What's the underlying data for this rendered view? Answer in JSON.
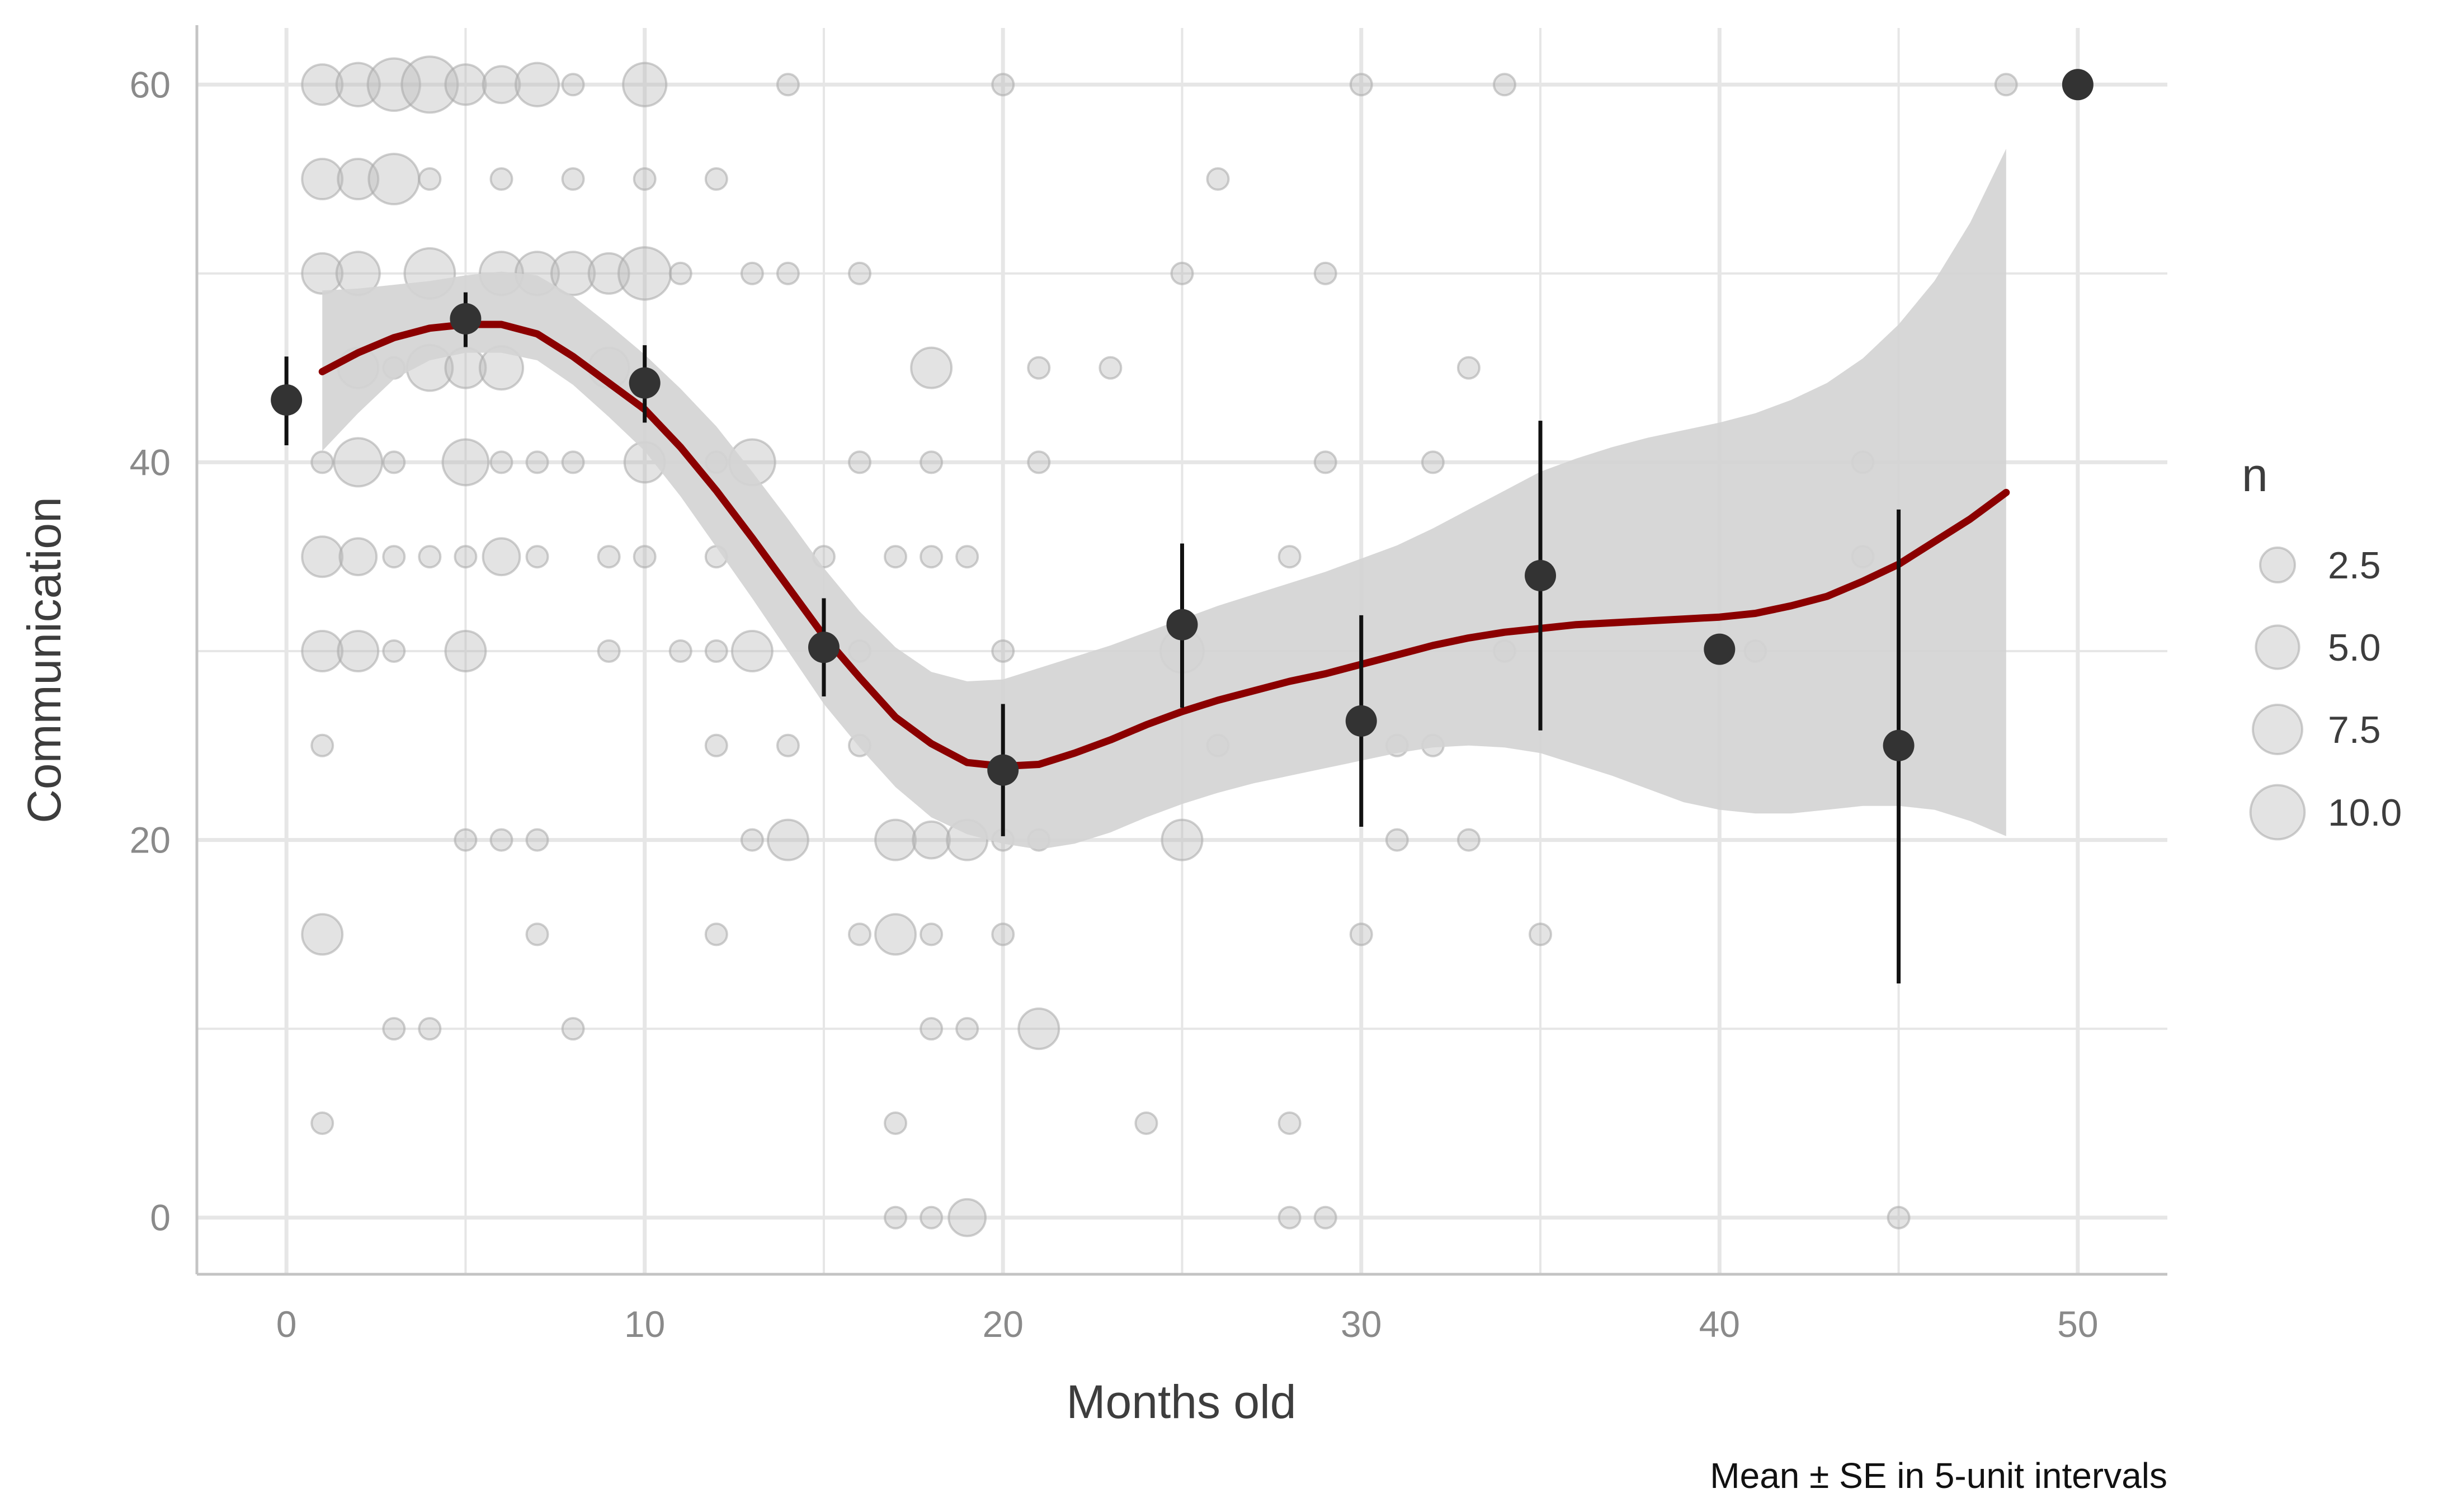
{
  "chart_data": {
    "type": "scatter",
    "title": "",
    "xlabel": "Months old",
    "ylabel": "Communication",
    "caption": "Mean ± SE in 5-unit intervals",
    "xlim": [
      -2.5,
      52.5
    ],
    "ylim": [
      -3,
      63
    ],
    "x_ticks": [
      0,
      10,
      20,
      30,
      40,
      50
    ],
    "y_ticks": [
      0,
      20,
      40,
      60
    ],
    "x_tick_labels": [
      "0",
      "10",
      "20",
      "30",
      "40",
      "50"
    ],
    "y_tick_labels": [
      "0",
      "20",
      "40",
      "60"
    ],
    "grid": true,
    "legend": {
      "title": "n",
      "position": "right",
      "entries": [
        {
          "label": "2.5",
          "n": 2.5
        },
        {
          "label": "5.0",
          "n": 5.0
        },
        {
          "label": "7.5",
          "n": 7.5
        },
        {
          "label": "10.0",
          "n": 10.0
        }
      ]
    },
    "colors": {
      "points": "#bdbdbd",
      "means": "#333333",
      "smooth": "#8b0000",
      "ribbon": "#d4d4d4",
      "grid": "#e6e6e6",
      "axis": "#c4c4c4"
    },
    "counts": [
      {
        "x": 1,
        "y": 60,
        "n": 4
      },
      {
        "x": 2,
        "y": 60,
        "n": 5
      },
      {
        "x": 3,
        "y": 60,
        "n": 9
      },
      {
        "x": 4,
        "y": 60,
        "n": 11
      },
      {
        "x": 5,
        "y": 60,
        "n": 4
      },
      {
        "x": 6,
        "y": 60,
        "n": 3
      },
      {
        "x": 7,
        "y": 60,
        "n": 5
      },
      {
        "x": 8,
        "y": 60,
        "n": 1
      },
      {
        "x": 10,
        "y": 60,
        "n": 5
      },
      {
        "x": 14,
        "y": 60,
        "n": 1
      },
      {
        "x": 20,
        "y": 60,
        "n": 1
      },
      {
        "x": 30,
        "y": 60,
        "n": 1
      },
      {
        "x": 34,
        "y": 60,
        "n": 1
      },
      {
        "x": 48,
        "y": 60,
        "n": 1
      },
      {
        "x": 1,
        "y": 55,
        "n": 4
      },
      {
        "x": 2,
        "y": 55,
        "n": 4
      },
      {
        "x": 3,
        "y": 55,
        "n": 8
      },
      {
        "x": 4,
        "y": 55,
        "n": 1
      },
      {
        "x": 6,
        "y": 55,
        "n": 1
      },
      {
        "x": 8,
        "y": 55,
        "n": 1
      },
      {
        "x": 10,
        "y": 55,
        "n": 1
      },
      {
        "x": 12,
        "y": 55,
        "n": 1
      },
      {
        "x": 26,
        "y": 55,
        "n": 1
      },
      {
        "x": 1,
        "y": 50,
        "n": 4
      },
      {
        "x": 2,
        "y": 50,
        "n": 5
      },
      {
        "x": 4,
        "y": 50,
        "n": 8
      },
      {
        "x": 6,
        "y": 50,
        "n": 5
      },
      {
        "x": 7,
        "y": 50,
        "n": 5
      },
      {
        "x": 8,
        "y": 50,
        "n": 5
      },
      {
        "x": 9,
        "y": 50,
        "n": 4
      },
      {
        "x": 10,
        "y": 50,
        "n": 9
      },
      {
        "x": 11,
        "y": 50,
        "n": 1
      },
      {
        "x": 13,
        "y": 50,
        "n": 1
      },
      {
        "x": 14,
        "y": 50,
        "n": 1
      },
      {
        "x": 16,
        "y": 50,
        "n": 1
      },
      {
        "x": 25,
        "y": 50,
        "n": 1
      },
      {
        "x": 29,
        "y": 50,
        "n": 1
      },
      {
        "x": 2,
        "y": 45,
        "n": 4
      },
      {
        "x": 3,
        "y": 45,
        "n": 1
      },
      {
        "x": 4,
        "y": 45,
        "n": 6
      },
      {
        "x": 5,
        "y": 45,
        "n": 4
      },
      {
        "x": 6,
        "y": 45,
        "n": 5
      },
      {
        "x": 9,
        "y": 45,
        "n": 4
      },
      {
        "x": 18,
        "y": 45,
        "n": 4
      },
      {
        "x": 21,
        "y": 45,
        "n": 1
      },
      {
        "x": 23,
        "y": 45,
        "n": 1
      },
      {
        "x": 33,
        "y": 45,
        "n": 1
      },
      {
        "x": 1,
        "y": 40,
        "n": 1
      },
      {
        "x": 2,
        "y": 40,
        "n": 7
      },
      {
        "x": 3,
        "y": 40,
        "n": 1
      },
      {
        "x": 5,
        "y": 40,
        "n": 6
      },
      {
        "x": 6,
        "y": 40,
        "n": 1
      },
      {
        "x": 7,
        "y": 40,
        "n": 1
      },
      {
        "x": 8,
        "y": 40,
        "n": 1
      },
      {
        "x": 10,
        "y": 40,
        "n": 4
      },
      {
        "x": 12,
        "y": 40,
        "n": 1
      },
      {
        "x": 13,
        "y": 40,
        "n": 6
      },
      {
        "x": 16,
        "y": 40,
        "n": 1
      },
      {
        "x": 18,
        "y": 40,
        "n": 1
      },
      {
        "x": 21,
        "y": 40,
        "n": 1
      },
      {
        "x": 29,
        "y": 40,
        "n": 1
      },
      {
        "x": 32,
        "y": 40,
        "n": 1
      },
      {
        "x": 44,
        "y": 40,
        "n": 1
      },
      {
        "x": 1,
        "y": 35,
        "n": 4
      },
      {
        "x": 2,
        "y": 35,
        "n": 3
      },
      {
        "x": 3,
        "y": 35,
        "n": 1
      },
      {
        "x": 4,
        "y": 35,
        "n": 1
      },
      {
        "x": 5,
        "y": 35,
        "n": 1
      },
      {
        "x": 6,
        "y": 35,
        "n": 3
      },
      {
        "x": 7,
        "y": 35,
        "n": 1
      },
      {
        "x": 9,
        "y": 35,
        "n": 1
      },
      {
        "x": 10,
        "y": 35,
        "n": 1
      },
      {
        "x": 12,
        "y": 35,
        "n": 1
      },
      {
        "x": 15,
        "y": 35,
        "n": 1
      },
      {
        "x": 17,
        "y": 35,
        "n": 1
      },
      {
        "x": 18,
        "y": 35,
        "n": 1
      },
      {
        "x": 19,
        "y": 35,
        "n": 1
      },
      {
        "x": 28,
        "y": 35,
        "n": 1
      },
      {
        "x": 44,
        "y": 35,
        "n": 1
      },
      {
        "x": 1,
        "y": 30,
        "n": 4
      },
      {
        "x": 2,
        "y": 30,
        "n": 4
      },
      {
        "x": 3,
        "y": 30,
        "n": 1
      },
      {
        "x": 5,
        "y": 30,
        "n": 4
      },
      {
        "x": 9,
        "y": 30,
        "n": 1
      },
      {
        "x": 11,
        "y": 30,
        "n": 1
      },
      {
        "x": 12,
        "y": 30,
        "n": 1
      },
      {
        "x": 13,
        "y": 30,
        "n": 4
      },
      {
        "x": 15,
        "y": 30,
        "n": 1
      },
      {
        "x": 16,
        "y": 30,
        "n": 1
      },
      {
        "x": 20,
        "y": 30,
        "n": 1
      },
      {
        "x": 25,
        "y": 30,
        "n": 5
      },
      {
        "x": 34,
        "y": 30,
        "n": 1
      },
      {
        "x": 41,
        "y": 30,
        "n": 1
      },
      {
        "x": 1,
        "y": 25,
        "n": 1
      },
      {
        "x": 12,
        "y": 25,
        "n": 1
      },
      {
        "x": 14,
        "y": 25,
        "n": 1
      },
      {
        "x": 16,
        "y": 25,
        "n": 1
      },
      {
        "x": 26,
        "y": 25,
        "n": 1
      },
      {
        "x": 31,
        "y": 25,
        "n": 1
      },
      {
        "x": 32,
        "y": 25,
        "n": 1
      },
      {
        "x": 5,
        "y": 20,
        "n": 1
      },
      {
        "x": 6,
        "y": 20,
        "n": 1
      },
      {
        "x": 7,
        "y": 20,
        "n": 1
      },
      {
        "x": 13,
        "y": 20,
        "n": 1
      },
      {
        "x": 14,
        "y": 20,
        "n": 4
      },
      {
        "x": 17,
        "y": 20,
        "n": 4
      },
      {
        "x": 18,
        "y": 20,
        "n": 3
      },
      {
        "x": 19,
        "y": 20,
        "n": 4
      },
      {
        "x": 20,
        "y": 20,
        "n": 1
      },
      {
        "x": 21,
        "y": 20,
        "n": 1
      },
      {
        "x": 25,
        "y": 20,
        "n": 4
      },
      {
        "x": 31,
        "y": 20,
        "n": 1
      },
      {
        "x": 33,
        "y": 20,
        "n": 1
      },
      {
        "x": 1,
        "y": 15,
        "n": 4
      },
      {
        "x": 7,
        "y": 15,
        "n": 1
      },
      {
        "x": 12,
        "y": 15,
        "n": 1
      },
      {
        "x": 16,
        "y": 15,
        "n": 1
      },
      {
        "x": 17,
        "y": 15,
        "n": 4
      },
      {
        "x": 18,
        "y": 15,
        "n": 1
      },
      {
        "x": 20,
        "y": 15,
        "n": 1
      },
      {
        "x": 30,
        "y": 15,
        "n": 1
      },
      {
        "x": 35,
        "y": 15,
        "n": 1
      },
      {
        "x": 3,
        "y": 10,
        "n": 1
      },
      {
        "x": 4,
        "y": 10,
        "n": 1
      },
      {
        "x": 8,
        "y": 10,
        "n": 1
      },
      {
        "x": 18,
        "y": 10,
        "n": 1
      },
      {
        "x": 19,
        "y": 10,
        "n": 1
      },
      {
        "x": 21,
        "y": 10,
        "n": 4
      },
      {
        "x": 1,
        "y": 5,
        "n": 1
      },
      {
        "x": 17,
        "y": 5,
        "n": 1
      },
      {
        "x": 24,
        "y": 5,
        "n": 1
      },
      {
        "x": 28,
        "y": 5,
        "n": 1
      },
      {
        "x": 17,
        "y": 0,
        "n": 1
      },
      {
        "x": 18,
        "y": 0,
        "n": 1
      },
      {
        "x": 19,
        "y": 0,
        "n": 3
      },
      {
        "x": 28,
        "y": 0,
        "n": 1
      },
      {
        "x": 29,
        "y": 0,
        "n": 1
      },
      {
        "x": 45,
        "y": 0,
        "n": 1
      }
    ],
    "means": [
      {
        "x": 0,
        "mean": 43.3,
        "low": 40.9,
        "high": 45.6
      },
      {
        "x": 5,
        "mean": 47.6,
        "low": 46.1,
        "high": 49.0
      },
      {
        "x": 10,
        "mean": 44.2,
        "low": 42.1,
        "high": 46.2
      },
      {
        "x": 15,
        "mean": 30.2,
        "low": 27.6,
        "high": 32.8
      },
      {
        "x": 20,
        "mean": 23.7,
        "low": 20.2,
        "high": 27.2
      },
      {
        "x": 25,
        "mean": 31.4,
        "low": 27.0,
        "high": 35.7
      },
      {
        "x": 30,
        "mean": 26.3,
        "low": 20.7,
        "high": 31.9
      },
      {
        "x": 35,
        "mean": 34.0,
        "low": 25.8,
        "high": 42.2
      },
      {
        "x": 40,
        "mean": 30.1,
        "low": 30.1,
        "high": 30.1
      },
      {
        "x": 45,
        "mean": 25.0,
        "low": 12.4,
        "high": 37.5
      },
      {
        "x": 50,
        "mean": 60.0,
        "low": 60.0,
        "high": 60.0
      }
    ],
    "smooth": {
      "x": [
        1,
        2,
        3,
        4,
        5,
        6,
        7,
        8,
        9,
        10,
        11,
        12,
        13,
        14,
        15,
        16,
        17,
        18,
        19,
        20,
        21,
        22,
        23,
        24,
        25,
        26,
        27,
        28,
        29,
        30,
        31,
        32,
        33,
        34,
        35,
        36,
        37,
        38,
        39,
        40,
        41,
        42,
        43,
        44,
        45,
        46,
        47,
        48
      ],
      "y": [
        44.8,
        45.8,
        46.6,
        47.1,
        47.3,
        47.3,
        46.8,
        45.6,
        44.2,
        42.8,
        40.8,
        38.5,
        36.0,
        33.4,
        30.8,
        28.6,
        26.5,
        25.1,
        24.1,
        23.9,
        24.0,
        24.6,
        25.3,
        26.1,
        26.8,
        27.4,
        27.9,
        28.4,
        28.8,
        29.3,
        29.8,
        30.3,
        30.7,
        31.0,
        31.2,
        31.4,
        31.5,
        31.6,
        31.7,
        31.8,
        32.0,
        32.4,
        32.9,
        33.7,
        34.6,
        35.8,
        37.0,
        38.4
      ],
      "lower": [
        40.6,
        42.6,
        44.4,
        45.4,
        45.8,
        45.8,
        45.4,
        44.1,
        42.4,
        40.6,
        38.2,
        35.5,
        32.8,
        30.0,
        27.2,
        24.9,
        22.8,
        21.2,
        20.3,
        19.8,
        19.5,
        19.8,
        20.4,
        21.2,
        21.9,
        22.5,
        23.0,
        23.4,
        23.8,
        24.2,
        24.6,
        24.9,
        25.0,
        24.9,
        24.6,
        24.0,
        23.4,
        22.7,
        22.0,
        21.6,
        21.4,
        21.4,
        21.6,
        21.8,
        21.8,
        21.6,
        21.0,
        20.2
      ],
      "upper": [
        49.1,
        49.2,
        49.4,
        49.6,
        49.9,
        50.1,
        49.9,
        48.8,
        47.3,
        45.7,
        43.9,
        41.9,
        39.5,
        37.0,
        34.4,
        32.1,
        30.2,
        28.9,
        28.4,
        28.5,
        29.1,
        29.7,
        30.3,
        31.0,
        31.7,
        32.4,
        33.0,
        33.6,
        34.2,
        34.9,
        35.6,
        36.5,
        37.5,
        38.5,
        39.5,
        40.2,
        40.8,
        41.3,
        41.7,
        42.1,
        42.6,
        43.3,
        44.2,
        45.5,
        47.3,
        49.6,
        52.7,
        56.6
      ]
    }
  }
}
